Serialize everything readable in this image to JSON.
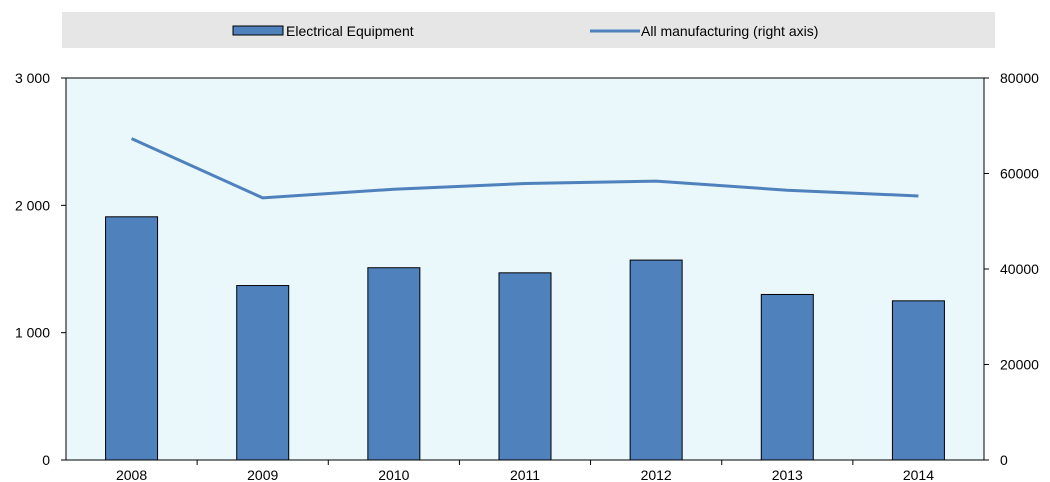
{
  "colors": {
    "bar_fill": "#4f81bd",
    "bar_stroke": "#000000",
    "line": "#4f81bd",
    "plot_bg": "#eaf7fb",
    "legend_bg": "#e6e6e6"
  },
  "chart_data": {
    "type": "bar",
    "title": "",
    "xlabel": "",
    "ylabel": "",
    "categories": [
      "2008",
      "2009",
      "2010",
      "2011",
      "2012",
      "2013",
      "2014"
    ],
    "series": [
      {
        "name": "Electrical Equipment",
        "type": "bar",
        "axis": "left",
        "values": [
          1910,
          1370,
          1510,
          1470,
          1570,
          1300,
          1250
        ]
      },
      {
        "name": "All manufacturing (right axis)",
        "type": "line",
        "axis": "right",
        "values": [
          67300,
          54900,
          56700,
          57900,
          58400,
          56500,
          55300
        ]
      }
    ],
    "y_left": {
      "lim": [
        0,
        3000
      ],
      "ticks": [
        0,
        1000,
        2000,
        3000
      ],
      "tick_labels": [
        "0",
        "1 000",
        "2 000",
        "3 000"
      ]
    },
    "y_right": {
      "lim": [
        0,
        80000
      ],
      "ticks": [
        0,
        20000,
        40000,
        60000,
        80000
      ],
      "tick_labels": [
        "0",
        "20000",
        "40000",
        "60000",
        "80000"
      ]
    },
    "legend_position": "top",
    "grid": false
  }
}
